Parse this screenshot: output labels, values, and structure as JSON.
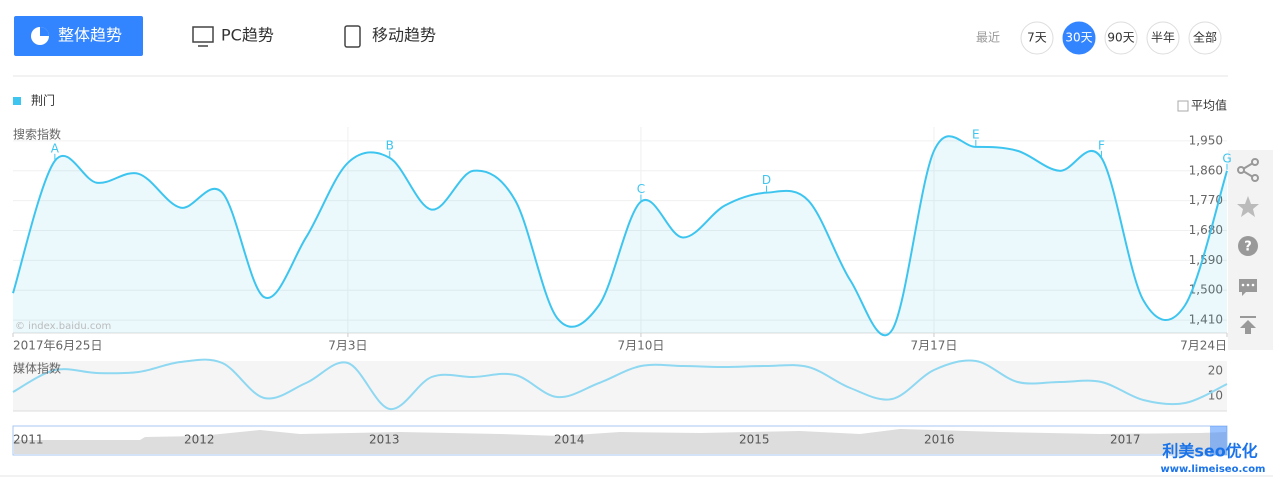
{
  "header": {
    "tabs": [
      "整体趋势",
      "PC趋势",
      "移动趋势"
    ],
    "active_tab": 0,
    "range_label": "最近",
    "ranges": [
      "7天",
      "30天",
      "90天",
      "半年",
      "全部"
    ],
    "active_range": 1,
    "average_label": "平均值"
  },
  "chart_data": [
    {
      "type": "line",
      "y_label": "搜索指数",
      "watermark": "© index.baidu.com",
      "categories": [
        "2017年6月25日",
        null,
        null,
        null,
        null,
        null,
        null,
        null,
        "7月3日",
        null,
        null,
        null,
        null,
        null,
        null,
        "7月10日",
        null,
        null,
        null,
        null,
        null,
        null,
        "7月17日",
        null,
        null,
        null,
        null,
        null,
        null,
        "7月24日"
      ],
      "annotations": [
        null,
        "A",
        null,
        null,
        null,
        null,
        null,
        null,
        null,
        "B",
        null,
        null,
        null,
        null,
        null,
        "C",
        null,
        null,
        "D",
        null,
        null,
        null,
        null,
        "E",
        null,
        null,
        "F",
        null,
        null,
        "G"
      ],
      "series": [
        {
          "name": "荆门",
          "color": "#3ec5ef",
          "values": [
            1491,
            1890,
            1824,
            1851,
            1749,
            1794,
            1479,
            1659,
            1884,
            1899,
            1743,
            1860,
            1770,
            1416,
            1455,
            1767,
            1659,
            1755,
            1794,
            1770,
            1530,
            1380,
            1920,
            1932,
            1920,
            1860,
            1899,
            1470,
            1455,
            1860
          ]
        }
      ],
      "ylim": [
        1371,
        1992
      ],
      "yticks": [
        {
          "value": 1410,
          "label": "1,410"
        },
        {
          "value": 1500,
          "label": "1,500"
        },
        {
          "value": 1590,
          "label": "1,590"
        },
        {
          "value": 1680,
          "label": "1,680"
        },
        {
          "value": 1770,
          "label": "1,770"
        },
        {
          "value": 1860,
          "label": "1,860"
        },
        {
          "value": 1950,
          "label": "1,950"
        }
      ],
      "grid": true
    },
    {
      "type": "line",
      "y_label": "媒体指数",
      "series": [
        {
          "color": "#8fd8f2",
          "values": [
            11.6,
            20.4,
            19.2,
            19.6,
            23.6,
            23.2,
            9.2,
            15.2,
            23.2,
            4.8,
            17.6,
            17.6,
            18.4,
            9.6,
            15.2,
            22,
            22,
            21.6,
            22,
            21.6,
            13.2,
            8.8,
            20.4,
            24,
            15.6,
            15.6,
            15.6,
            8.4,
            7.2,
            14.8
          ]
        }
      ],
      "ylim": [
        4,
        24
      ],
      "yticks": [
        10,
        20
      ],
      "grid": false
    }
  ],
  "timeline": {
    "labels": [
      "2011",
      "2012",
      "2013",
      "2014",
      "2015",
      "2016",
      "2017"
    ]
  },
  "brand": {
    "name": "利美seo优化",
    "url": "www.limeiseo.com"
  }
}
